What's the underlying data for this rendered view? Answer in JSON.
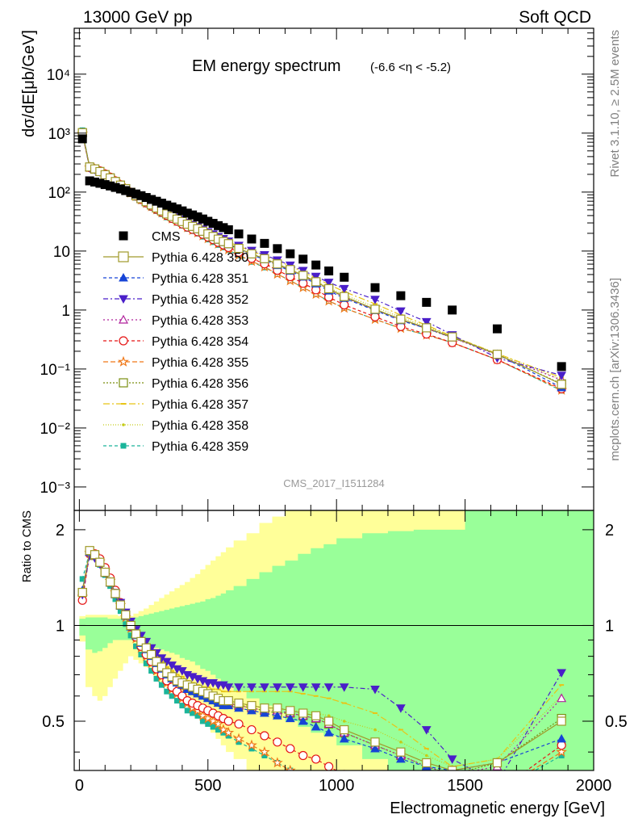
{
  "header": {
    "left": "13000 GeV pp",
    "right": "Soft QCD"
  },
  "side_text": {
    "top": "Rivet 3.1.10, ≥ 2.5M events",
    "bottom": "mcplots.cern.ch [arXiv:1306.3436]"
  },
  "colors": {
    "band_outer": "#ffff99",
    "band_inner": "#99ff99"
  },
  "chart_data": [
    {
      "type": "scatter",
      "panel": "main",
      "title": "EM energy spectrum",
      "subtitle": "(-6.6 <η < -5.2)",
      "ylabel": "dσ/dE[μb/GeV]",
      "xlabel": "",
      "yscale": "log",
      "xlim": [
        -20,
        2000
      ],
      "ylim": [
        0.0004,
        60000
      ],
      "ytick_labels": [
        "10⁻³",
        "10⁻²",
        "10⁻¹",
        "1",
        "10",
        "10²",
        "10³",
        "10⁴"
      ],
      "watermark": "CMS_2017_I1511284",
      "legend_position": "left",
      "x": [
        12,
        40,
        60,
        80,
        100,
        120,
        140,
        160,
        180,
        200,
        220,
        240,
        260,
        280,
        300,
        320,
        340,
        360,
        380,
        400,
        420,
        440,
        460,
        480,
        500,
        520,
        540,
        560,
        580,
        620,
        670,
        720,
        770,
        820,
        870,
        920,
        970,
        1030,
        1150,
        1250,
        1350,
        1450,
        1625,
        1875
      ],
      "series": [
        {
          "name": "CMS",
          "color": "#000000",
          "marker": "square-filled",
          "dash": "none",
          "values": [
            800,
            155,
            148,
            141,
            134,
            127,
            120,
            113,
            106,
            99,
            93,
            87,
            81,
            75,
            70,
            65,
            60,
            56,
            52,
            48,
            44,
            41,
            38,
            35,
            32,
            29.5,
            27,
            25,
            23,
            19.5,
            16,
            13.5,
            11,
            9,
            7.3,
            5.8,
            4.6,
            3.6,
            2.4,
            1.75,
            1.35,
            1.0,
            0.48,
            0.11
          ]
        },
        {
          "name": "Pythia 6.428 350",
          "color": "#a09a2a",
          "marker": "square-open",
          "dash": "solid",
          "ratio": [
            1.27,
            1.72,
            1.67,
            1.58,
            1.47,
            1.37,
            1.26,
            1.16,
            1.08,
            1.0,
            0.94,
            0.89,
            0.85,
            0.81,
            0.77,
            0.74,
            0.71,
            0.69,
            0.67,
            0.66,
            0.65,
            0.64,
            0.63,
            0.62,
            0.61,
            0.6,
            0.59,
            0.58,
            0.58,
            0.57,
            0.56,
            0.55,
            0.55,
            0.54,
            0.53,
            0.52,
            0.5,
            0.47,
            0.43,
            0.4,
            0.37,
            0.35,
            0.37,
            0.5
          ]
        },
        {
          "name": "Pythia 6.428 351",
          "color": "#1744d6",
          "marker": "triangle-up-filled",
          "dash": "4,3",
          "ratio": [
            1.29,
            1.7,
            1.66,
            1.57,
            1.46,
            1.36,
            1.25,
            1.15,
            1.07,
            0.99,
            0.93,
            0.88,
            0.84,
            0.8,
            0.76,
            0.73,
            0.7,
            0.68,
            0.66,
            0.65,
            0.63,
            0.62,
            0.61,
            0.6,
            0.59,
            0.58,
            0.57,
            0.56,
            0.56,
            0.55,
            0.54,
            0.53,
            0.52,
            0.51,
            0.5,
            0.48,
            0.46,
            0.44,
            0.41,
            0.38,
            0.36,
            0.35,
            0.37,
            0.44
          ]
        },
        {
          "name": "Pythia 6.428 352",
          "color": "#4a1fc9",
          "marker": "triangle-down-filled",
          "dash": "6,3,2,3",
          "ratio": [
            1.25,
            1.66,
            1.63,
            1.56,
            1.47,
            1.37,
            1.27,
            1.18,
            1.1,
            1.03,
            0.97,
            0.93,
            0.89,
            0.85,
            0.82,
            0.79,
            0.77,
            0.75,
            0.73,
            0.72,
            0.7,
            0.69,
            0.68,
            0.67,
            0.66,
            0.66,
            0.65,
            0.65,
            0.64,
            0.64,
            0.64,
            0.64,
            0.64,
            0.64,
            0.64,
            0.64,
            0.64,
            0.64,
            0.63,
            0.55,
            0.47,
            0.38,
            0.32,
            0.71
          ]
        },
        {
          "name": "Pythia 6.428 353",
          "color": "#b0229c",
          "marker": "triangle-up-open",
          "dash": "2,3",
          "ratio": [
            1.28,
            1.7,
            1.66,
            1.58,
            1.47,
            1.37,
            1.26,
            1.16,
            1.08,
            1.0,
            0.94,
            0.89,
            0.85,
            0.81,
            0.77,
            0.74,
            0.71,
            0.69,
            0.67,
            0.65,
            0.64,
            0.63,
            0.62,
            0.61,
            0.6,
            0.59,
            0.58,
            0.57,
            0.57,
            0.56,
            0.55,
            0.54,
            0.54,
            0.53,
            0.52,
            0.51,
            0.49,
            0.46,
            0.42,
            0.39,
            0.36,
            0.34,
            0.36,
            0.59
          ]
        },
        {
          "name": "Pythia 6.428 354",
          "color": "#e51414",
          "marker": "circle-open",
          "dash": "4,3",
          "ratio": [
            1.2,
            1.68,
            1.68,
            1.62,
            1.52,
            1.41,
            1.29,
            1.18,
            1.08,
            0.99,
            0.92,
            0.86,
            0.81,
            0.77,
            0.73,
            0.7,
            0.67,
            0.64,
            0.62,
            0.6,
            0.58,
            0.57,
            0.56,
            0.55,
            0.54,
            0.53,
            0.52,
            0.51,
            0.5,
            0.49,
            0.47,
            0.45,
            0.43,
            0.41,
            0.39,
            0.38,
            0.36,
            0.34,
            0.32,
            0.3,
            0.29,
            0.28,
            0.3,
            0.42
          ]
        },
        {
          "name": "Pythia 6.428 355",
          "color": "#f07818",
          "marker": "star-open",
          "dash": "6,3",
          "ratio": [
            1.23,
            1.69,
            1.66,
            1.59,
            1.49,
            1.38,
            1.27,
            1.16,
            1.06,
            0.98,
            0.91,
            0.85,
            0.8,
            0.76,
            0.72,
            0.69,
            0.66,
            0.63,
            0.61,
            0.59,
            0.57,
            0.55,
            0.54,
            0.52,
            0.51,
            0.5,
            0.49,
            0.47,
            0.46,
            0.44,
            0.42,
            0.4,
            0.37,
            0.35,
            0.33,
            0.32,
            0.31,
            0.3,
            0.29,
            0.28,
            0.28,
            0.28,
            0.3,
            0.4
          ]
        },
        {
          "name": "Pythia 6.428 356",
          "color": "#7a8f12",
          "marker": "square-open",
          "dash": "2,2",
          "ratio": [
            1.27,
            1.71,
            1.66,
            1.58,
            1.47,
            1.37,
            1.26,
            1.16,
            1.08,
            1.0,
            0.94,
            0.89,
            0.85,
            0.81,
            0.77,
            0.74,
            0.71,
            0.69,
            0.67,
            0.65,
            0.64,
            0.63,
            0.62,
            0.61,
            0.6,
            0.59,
            0.58,
            0.57,
            0.57,
            0.56,
            0.55,
            0.54,
            0.53,
            0.53,
            0.52,
            0.51,
            0.49,
            0.46,
            0.42,
            0.39,
            0.36,
            0.34,
            0.37,
            0.51
          ]
        },
        {
          "name": "Pythia 6.428 357",
          "color": "#e8c416",
          "marker": "dash",
          "dash": "8,3,2,3",
          "ratio": [
            1.3,
            1.69,
            1.64,
            1.56,
            1.46,
            1.37,
            1.27,
            1.18,
            1.1,
            1.03,
            0.97,
            0.92,
            0.88,
            0.84,
            0.8,
            0.77,
            0.74,
            0.72,
            0.7,
            0.69,
            0.67,
            0.66,
            0.65,
            0.64,
            0.64,
            0.63,
            0.63,
            0.62,
            0.62,
            0.62,
            0.62,
            0.62,
            0.62,
            0.62,
            0.61,
            0.6,
            0.59,
            0.57,
            0.53,
            0.47,
            0.41,
            0.36,
            0.38,
            0.65
          ]
        },
        {
          "name": "Pythia 6.428 358",
          "color": "#c4cc18",
          "marker": "dot",
          "dash": "1,2",
          "ratio": [
            1.29,
            1.68,
            1.63,
            1.55,
            1.45,
            1.35,
            1.25,
            1.16,
            1.08,
            1.01,
            0.95,
            0.9,
            0.86,
            0.82,
            0.78,
            0.75,
            0.72,
            0.7,
            0.68,
            0.66,
            0.65,
            0.64,
            0.63,
            0.62,
            0.61,
            0.6,
            0.59,
            0.58,
            0.57,
            0.56,
            0.56,
            0.55,
            0.55,
            0.54,
            0.54,
            0.53,
            0.52,
            0.5,
            0.47,
            0.43,
            0.39,
            0.36,
            0.38,
            0.6
          ]
        },
        {
          "name": "Pythia 6.428 359",
          "color": "#1ab59a",
          "marker": "square-filled-small",
          "dash": "4,3",
          "ratio": [
            1.4,
            1.7,
            1.64,
            1.55,
            1.44,
            1.33,
            1.21,
            1.11,
            1.01,
            0.93,
            0.86,
            0.81,
            0.76,
            0.72,
            0.68,
            0.65,
            0.62,
            0.6,
            0.58,
            0.56,
            0.54,
            0.53,
            0.52,
            0.5,
            0.49,
            0.48,
            0.47,
            0.46,
            0.45,
            0.43,
            0.41,
            0.39,
            0.37,
            0.35,
            0.33,
            0.32,
            0.31,
            0.3,
            0.29,
            0.28,
            0.28,
            0.28,
            0.3,
            0.39
          ]
        }
      ]
    },
    {
      "type": "area",
      "panel": "ratio",
      "ylabel": "Ratio to CMS",
      "xlabel": "Electromagnetic energy [GeV]",
      "xlim": [
        -20,
        2000
      ],
      "ylim": [
        0.35,
        2.3
      ],
      "xtick_labels": [
        "0",
        "500",
        "1000",
        "1500",
        "2000"
      ],
      "ytick_labels": [
        "0.5",
        "1",
        "2"
      ],
      "reference_line": 1,
      "bands": {
        "x_edges": [
          0,
          24,
          50,
          70,
          90,
          110,
          130,
          150,
          170,
          190,
          210,
          230,
          250,
          270,
          290,
          310,
          330,
          350,
          370,
          390,
          410,
          430,
          450,
          470,
          490,
          510,
          530,
          550,
          570,
          600,
          650,
          700,
          750,
          800,
          850,
          900,
          950,
          1000,
          1100,
          1200,
          1300,
          1400,
          1500,
          1750,
          2000
        ],
        "outer_lo": [
          0.89,
          0.64,
          0.6,
          0.58,
          0.6,
          0.64,
          0.68,
          0.72,
          0.76,
          0.8,
          0.78,
          0.76,
          0.74,
          0.71,
          0.69,
          0.66,
          0.64,
          0.62,
          0.6,
          0.58,
          0.56,
          0.54,
          0.52,
          0.5,
          0.48,
          0.46,
          0.44,
          0.42,
          0.4,
          0.38,
          0.35,
          0.33,
          0.31,
          0.3,
          0.29,
          0.28,
          0.27,
          0.25,
          0.25,
          0.25,
          0.25,
          0.25,
          0.25,
          0.25
        ],
        "inner_lo": [
          0.93,
          0.84,
          0.82,
          0.83,
          0.85,
          0.88,
          0.9,
          0.9,
          0.9,
          0.9,
          0.89,
          0.88,
          0.87,
          0.86,
          0.85,
          0.84,
          0.83,
          0.82,
          0.81,
          0.79,
          0.78,
          0.77,
          0.75,
          0.73,
          0.72,
          0.7,
          0.68,
          0.66,
          0.64,
          0.62,
          0.59,
          0.56,
          0.53,
          0.5,
          0.48,
          0.46,
          0.45,
          0.42,
          0.38,
          0.35,
          0.33,
          0.3,
          0.28,
          0.28
        ],
        "inner_hi": [
          1.05,
          1.06,
          1.06,
          1.06,
          1.06,
          1.05,
          1.05,
          1.05,
          1.05,
          1.05,
          1.06,
          1.07,
          1.08,
          1.09,
          1.1,
          1.11,
          1.12,
          1.13,
          1.14,
          1.15,
          1.16,
          1.17,
          1.18,
          1.19,
          1.21,
          1.22,
          1.24,
          1.26,
          1.29,
          1.33,
          1.4,
          1.47,
          1.54,
          1.6,
          1.68,
          1.75,
          1.8,
          1.88,
          1.95,
          1.98,
          2.0,
          2.0,
          2.5,
          2.5
        ],
        "outer_hi": [
          1.07,
          1.08,
          1.08,
          1.08,
          1.08,
          1.08,
          1.08,
          1.07,
          1.07,
          1.07,
          1.09,
          1.11,
          1.13,
          1.16,
          1.19,
          1.22,
          1.25,
          1.28,
          1.31,
          1.34,
          1.37,
          1.41,
          1.45,
          1.5,
          1.55,
          1.6,
          1.65,
          1.7,
          1.76,
          1.85,
          1.95,
          2.1,
          2.2,
          2.3,
          2.4,
          2.5,
          2.5,
          2.5,
          2.5,
          2.5,
          2.5,
          2.5,
          2.5,
          2.5
        ]
      }
    }
  ]
}
